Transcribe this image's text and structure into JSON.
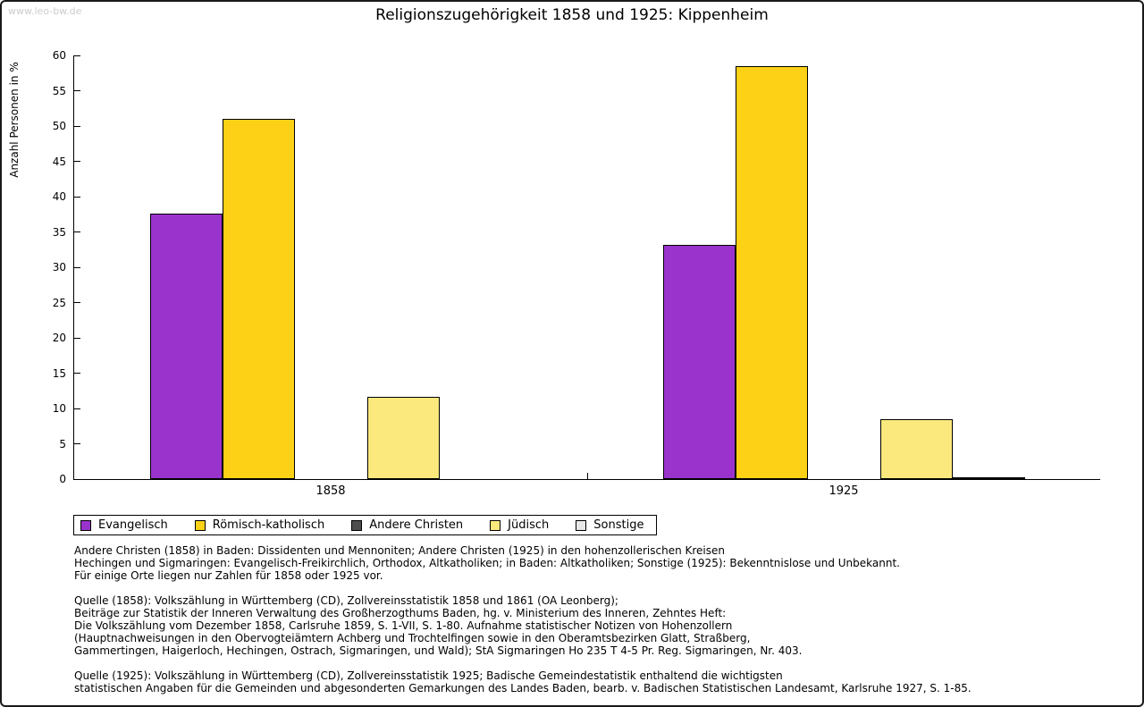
{
  "watermark": "www.leo-bw.de",
  "chart_data": {
    "type": "bar",
    "title": "Religionszugehörigkeit 1858 und 1925: Kippenheim",
    "ylabel": "Anzahl Personen in %",
    "xlabel": "",
    "ylim": [
      0,
      60
    ],
    "ytick_step": 5,
    "grid": false,
    "legend_position": "bottom",
    "categories": [
      "1858",
      "1925"
    ],
    "series": [
      {
        "name": "Evangelisch",
        "color": "#9933cc",
        "values": [
          37.6,
          33.2
        ]
      },
      {
        "name": "Römisch-katholisch",
        "color": "#fcd116",
        "values": [
          51.0,
          58.5
        ]
      },
      {
        "name": "Andere Christen",
        "color": "#4d4d4d",
        "values": [
          0,
          0
        ]
      },
      {
        "name": "Jüdisch",
        "color": "#fce97e",
        "values": [
          11.6,
          8.5
        ]
      },
      {
        "name": "Sonstige",
        "color": "#e8e8e8",
        "values": [
          0,
          0.3
        ]
      }
    ]
  },
  "footnotes": [
    [
      "Andere Christen (1858) in Baden: Dissidenten und Mennoniten; Andere Christen (1925) in den hohenzollerischen Kreisen",
      "Hechingen und Sigmaringen: Evangelisch-Freikirchlich, Orthodox, Altkatholiken; in Baden: Altkatholiken; Sonstige (1925): Bekenntnislose und Unbekannt.",
      "Für einige Orte liegen nur Zahlen für 1858 oder 1925 vor."
    ],
    [
      "Quelle (1858): Volkszählung in Württemberg (CD), Zollvereinsstatistik 1858 und 1861 (OA Leonberg);",
      "Beiträge zur Statistik der Inneren Verwaltung des Großherzogthums Baden, hg. v. Ministerium des Inneren, Zehntes Heft:",
      "Die Volkszählung vom Dezember 1858, Carlsruhe 1859, S. 1-VII, S. 1-80. Aufnahme statistischer Notizen von Hohenzollern",
      "(Hauptnachweisungen in den Obervogteiämtern Achberg und Trochtelfingen sowie in den Oberamtsbezirken Glatt, Straßberg,",
      "Gammertingen, Haigerloch, Hechingen, Ostrach, Sigmaringen, und Wald); StA Sigmaringen Ho 235 T 4-5 Pr. Reg. Sigmaringen, Nr. 403."
    ],
    [
      "Quelle (1925): Volkszählung in Württemberg (CD), Zollvereinsstatistik 1925; Badische Gemeindestatistik enthaltend die wichtigsten",
      "statistischen Angaben für die Gemeinden und abgesonderten Gemarkungen des Landes Baden, bearb. v. Badischen Statistischen Landesamt, Karlsruhe 1927, S. 1-85."
    ]
  ]
}
